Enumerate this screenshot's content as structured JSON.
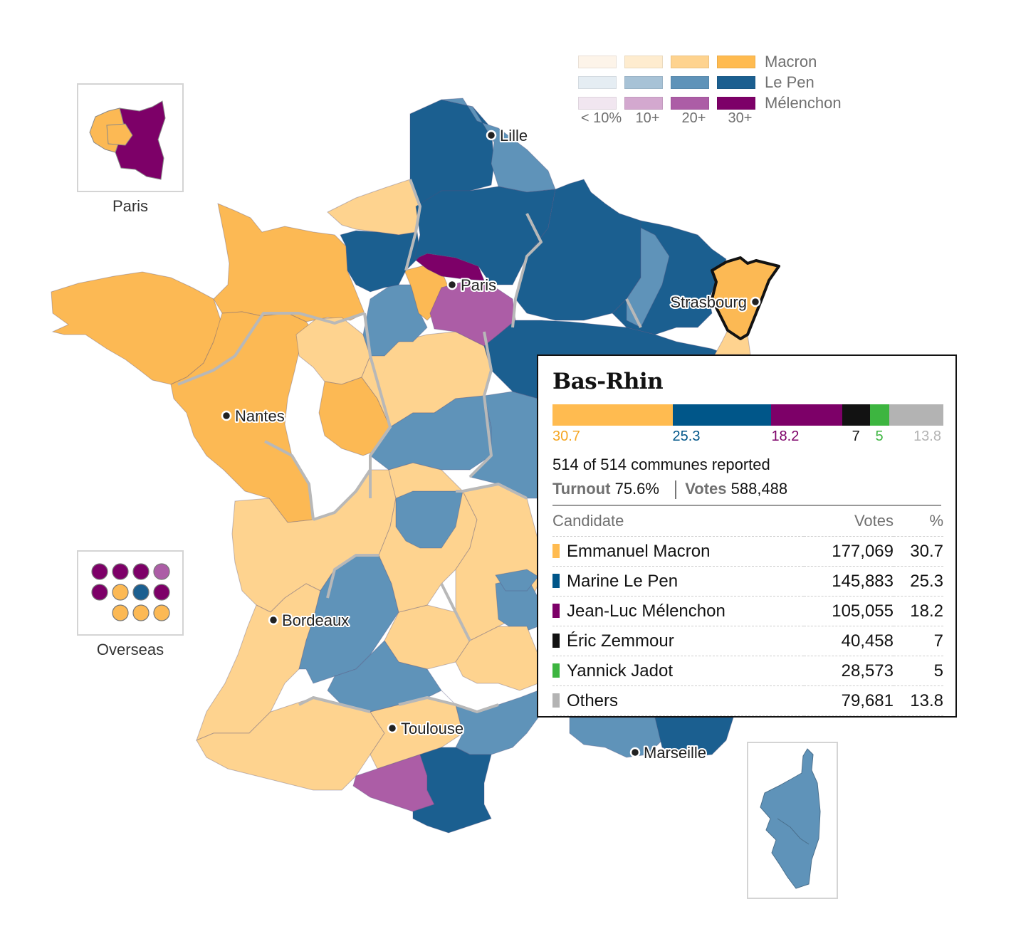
{
  "legend": {
    "rows": [
      {
        "name": "Macron",
        "colors": [
          "#fdf4e9",
          "#feeccf",
          "#fed38f",
          "#ffbb50"
        ]
      },
      {
        "name": "Le Pen",
        "colors": [
          "#e5edf3",
          "#a7c2d6",
          "#5f93b9",
          "#1b5f90"
        ]
      },
      {
        "name": "Mélenchon",
        "colors": [
          "#f1e6f0",
          "#d3a8cf",
          "#ac5da6",
          "#7d0068"
        ]
      }
    ],
    "ticks": [
      "< 10%",
      "10+",
      "20+",
      "30+"
    ]
  },
  "cities": [
    "Lille",
    "Paris",
    "Strasbourg",
    "Nantes",
    "Bordeaux",
    "Toulouse",
    "Marseille"
  ],
  "insets": {
    "paris": "Paris",
    "overseas": "Overseas"
  },
  "tooltip": {
    "title": "Bas-Rhin",
    "reported": "514 of 514 communes reported",
    "turnout_label": "Turnout",
    "turnout_value": "75.6%",
    "votes_label": "Votes",
    "votes_value": "588,488",
    "col_candidate": "Candidate",
    "col_votes": "Votes",
    "col_pct": "%",
    "candidates": [
      {
        "name": "Emmanuel Macron",
        "votes": "177,069",
        "pct": "30.7",
        "share": 30.7,
        "color": "#ffbb50",
        "label_color": "#f5a623"
      },
      {
        "name": "Marine Le Pen",
        "votes": "145,883",
        "pct": "25.3",
        "share": 25.3,
        "color": "#005689",
        "label_color": "#005689"
      },
      {
        "name": "Jean-Luc Mélenchon",
        "votes": "105,055",
        "pct": "18.2",
        "share": 18.2,
        "color": "#7d0068",
        "label_color": "#7d0068"
      },
      {
        "name": "Éric Zemmour",
        "votes": "40,458",
        "pct": "7",
        "share": 7,
        "color": "#121212",
        "label_color": "#121212"
      },
      {
        "name": "Yannick Jadot",
        "votes": "28,573",
        "pct": "5",
        "share": 5,
        "color": "#3db540",
        "label_color": "#3db540"
      },
      {
        "name": "Others",
        "votes": "79,681",
        "pct": "13.8",
        "share": 13.8,
        "color": "#b3b3b3",
        "label_color": "#b3b3b3"
      }
    ]
  }
}
